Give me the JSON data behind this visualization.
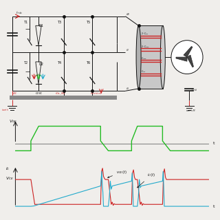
{
  "bg_color": "#f0eeeb",
  "green_color": "#22bb22",
  "red_color": "#cc2222",
  "blue_color": "#22aacc",
  "black_color": "#111111",
  "gray_color": "#888888",
  "gray_bar": "#888888",
  "white": "#ffffff",
  "motor_fill": "#cccccc",
  "vge_label": "$V_{GE}$",
  "ic_label": "$I_C$",
  "vce_label": "$V_{CE}$",
  "t_label": "t",
  "vce_t_label": "$v_{CE}(t)$",
  "ic_t_label": "$i_C(t)$"
}
